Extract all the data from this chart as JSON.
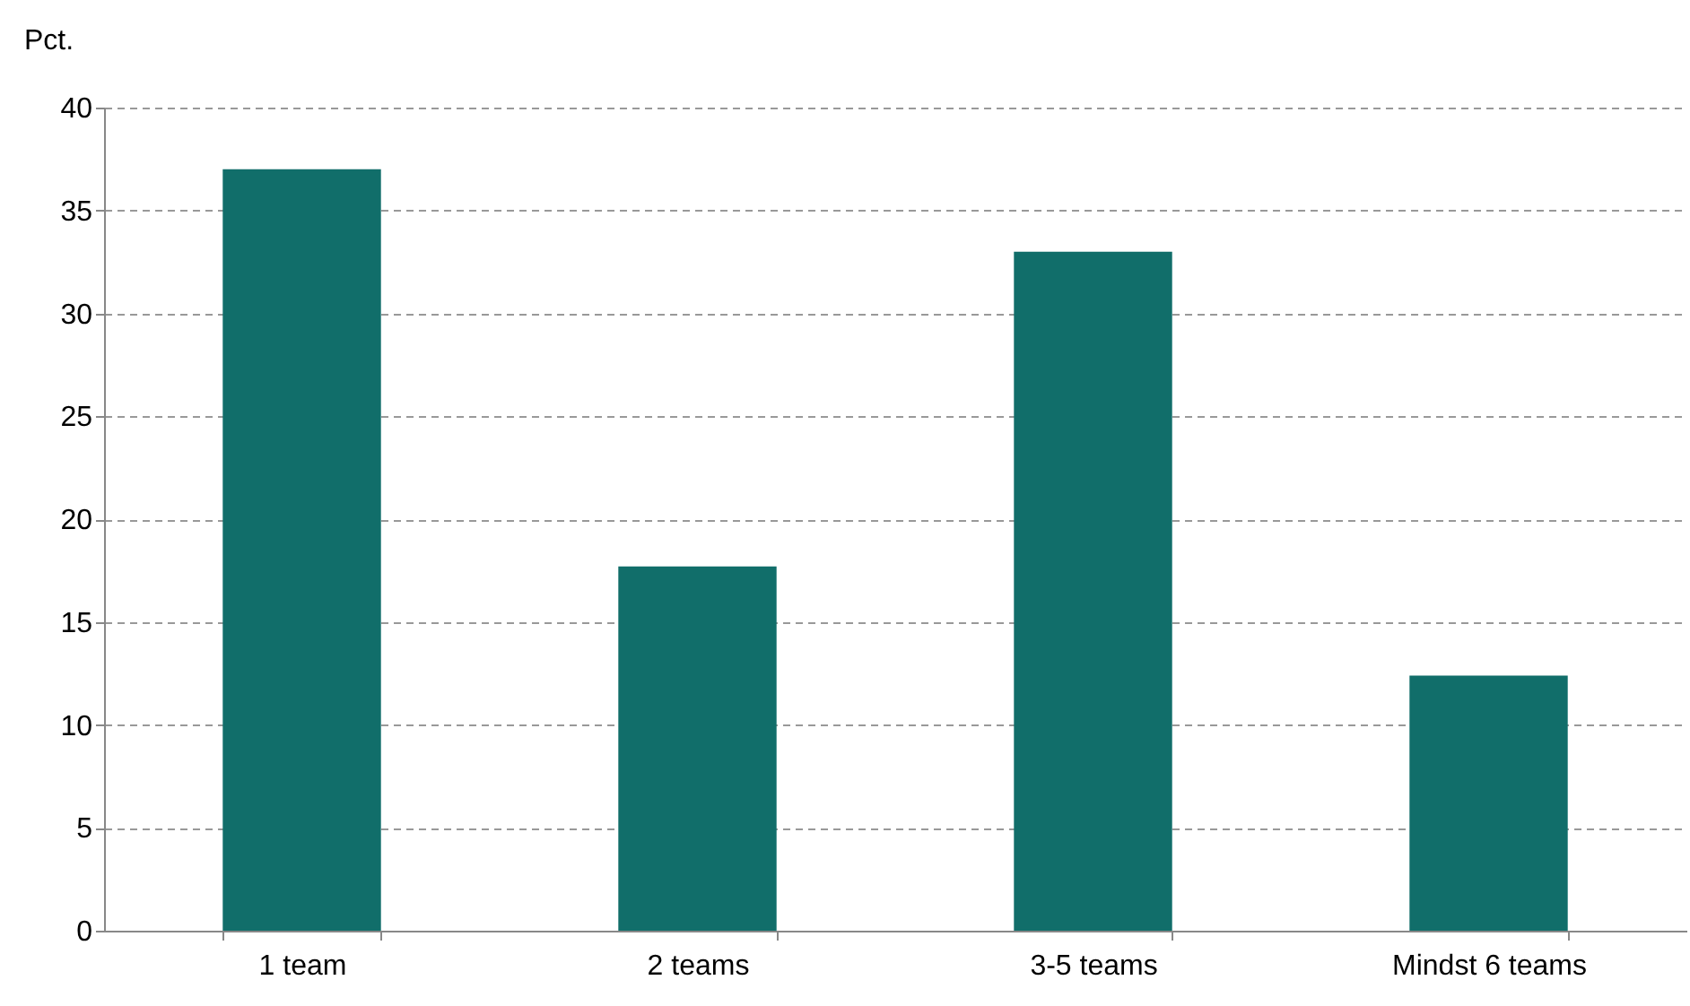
{
  "chart_data": {
    "type": "bar",
    "ylabel": "Pct.",
    "categories": [
      "1 team",
      "2 teams",
      "3-5 teams",
      "Mindst 6 teams"
    ],
    "values": [
      37,
      17.7,
      33,
      12.4
    ],
    "color": "#116e6a",
    "ylim": [
      0,
      40
    ],
    "yticks": [
      0,
      5,
      10,
      15,
      20,
      25,
      30,
      35,
      40
    ],
    "grid": "y"
  }
}
